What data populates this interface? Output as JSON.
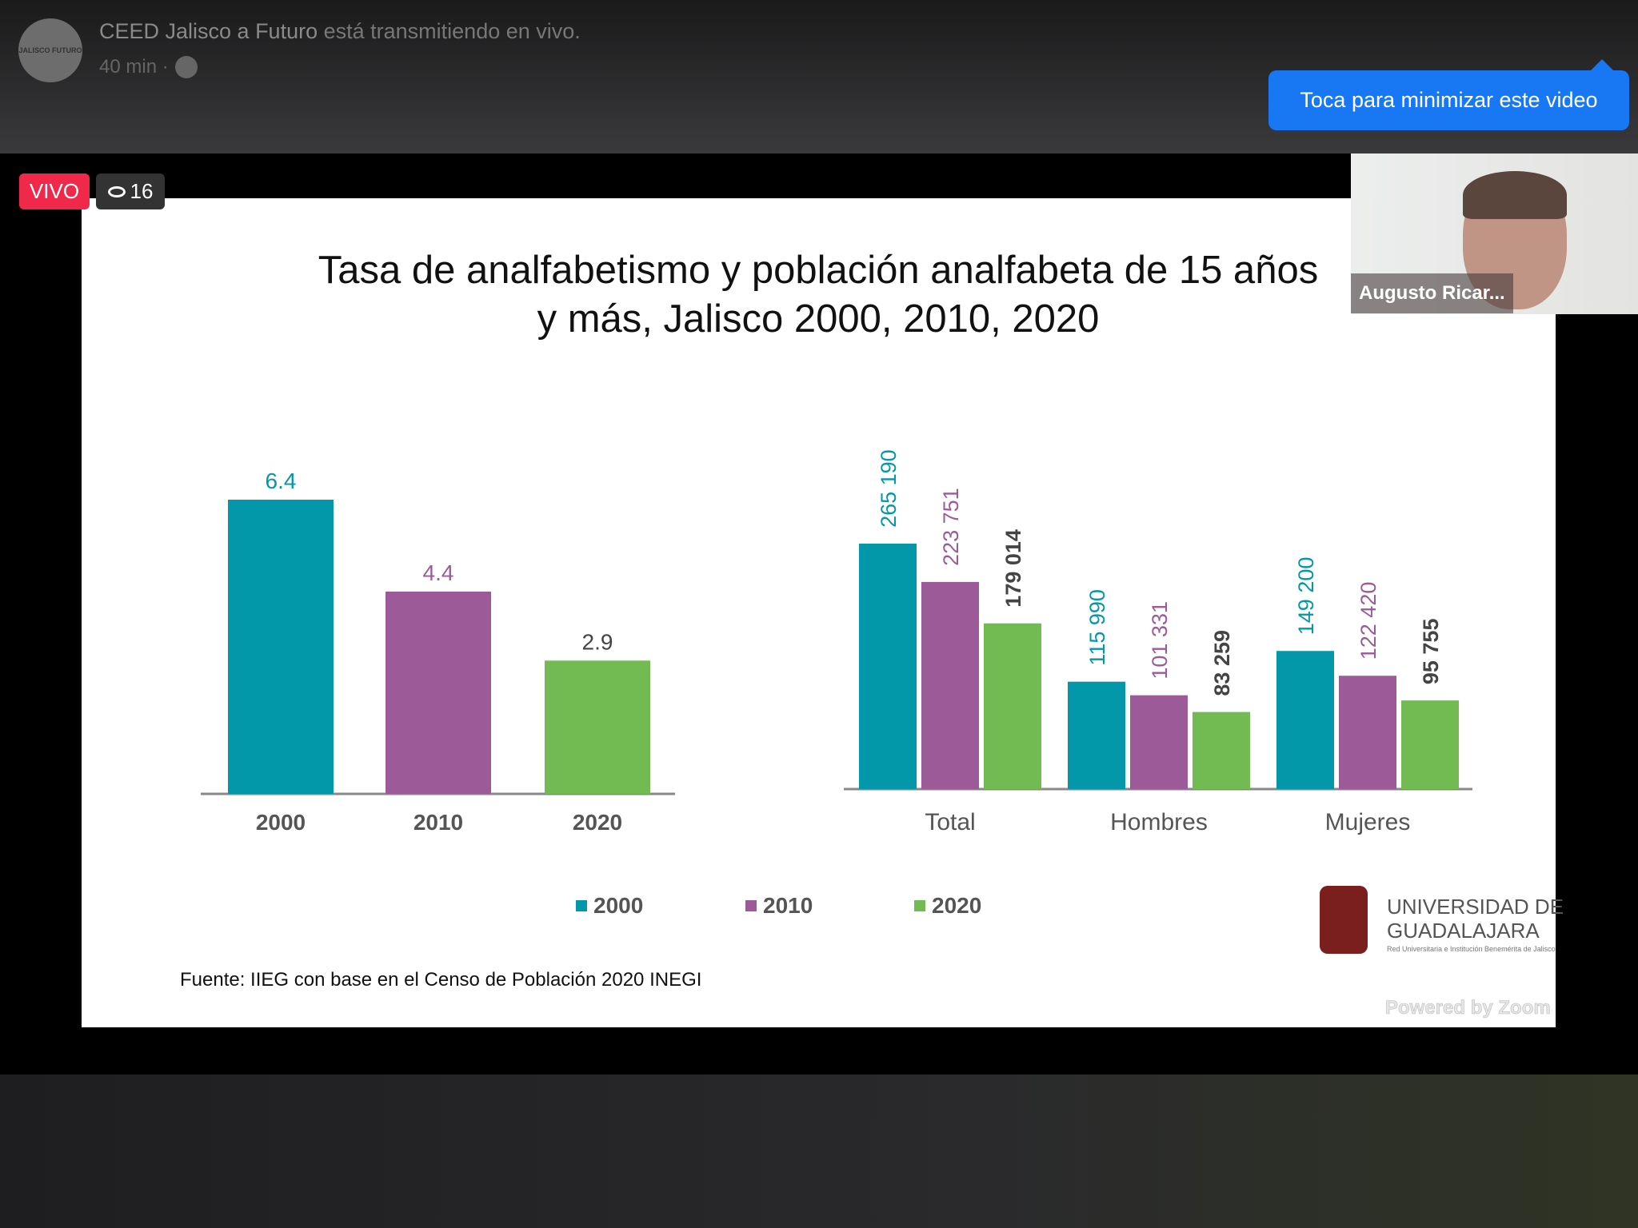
{
  "post": {
    "avatar_text": "JALISCO FUTURO",
    "page": "CEED  Jalisco a Futuro",
    "action": " está transmitiendo en vivo.",
    "time": "40 min ·"
  },
  "tooltip": "Toca para minimizar este video",
  "live": {
    "badge": "VIVO",
    "viewers": "16"
  },
  "camera": {
    "name": "Augusto Ricar..."
  },
  "slide": {
    "title_line1": "Tasa de analfabetismo y población analfabeta de 15 años",
    "title_line2": "y más, Jalisco 2000, 2010, 2020",
    "source": "Fuente: IIEG con base en el Censo de Población 2020 INEGI",
    "logo": {
      "line1": "UNIVERSIDAD DE",
      "line2": "GUADALAJARA",
      "line3": "Red Universitaria e Institución Benemérita de Jalisco"
    },
    "powered": "Powered by Zoom"
  },
  "colors": {
    "2000": "#0397aa",
    "2010": "#9c5b98",
    "2020": "#72bb53",
    "label2020": "#444444"
  },
  "chart_data": [
    {
      "type": "bar",
      "title": "Tasa de analfabetismo",
      "categories": [
        "2000",
        "2010",
        "2020"
      ],
      "values": [
        6.4,
        4.4,
        2.9
      ],
      "labels": [
        "6.4",
        "4.4",
        "2.9"
      ]
    },
    {
      "type": "bar",
      "title": "Población analfabeta",
      "categories": [
        "Total",
        "Hombres",
        "Mujeres"
      ],
      "series": [
        {
          "name": "2000",
          "values": [
            265190,
            115990,
            149200
          ],
          "labels": [
            "265 190",
            "115 990",
            "149 200"
          ]
        },
        {
          "name": "2010",
          "values": [
            223751,
            101331,
            122420
          ],
          "labels": [
            "223 751",
            "101 331",
            "122 420"
          ]
        },
        {
          "name": "2020",
          "values": [
            179014,
            83259,
            95755
          ],
          "labels": [
            "179 014",
            "83 259",
            "95 755"
          ]
        }
      ],
      "legend": [
        "2000",
        "2010",
        "2020"
      ]
    }
  ]
}
